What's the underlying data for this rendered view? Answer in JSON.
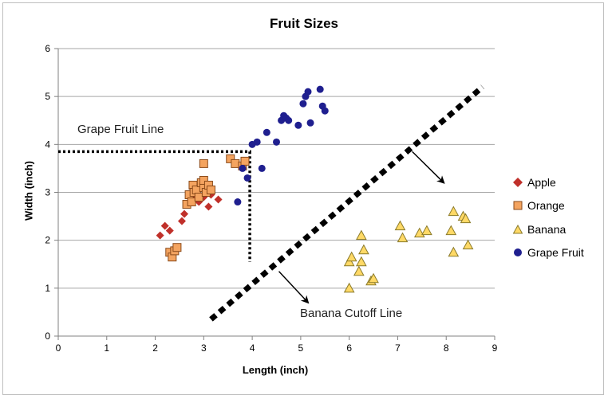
{
  "chart_data": {
    "type": "scatter",
    "title": "Fruit Sizes",
    "xlabel": "Length (inch)",
    "ylabel": "Width  (inch)",
    "xlim": [
      0,
      9
    ],
    "ylim": [
      0,
      6
    ],
    "xticks": [
      0,
      1,
      2,
      3,
      4,
      5,
      6,
      7,
      8,
      9
    ],
    "yticks": [
      0,
      1,
      2,
      3,
      4,
      5,
      6
    ],
    "grid": "horizontal",
    "legend_position": "right",
    "series": [
      {
        "name": "Apple",
        "marker": "diamond",
        "color": "#c0302a",
        "points": [
          [
            2.1,
            2.1
          ],
          [
            2.2,
            2.3
          ],
          [
            2.3,
            2.2
          ],
          [
            2.55,
            2.4
          ],
          [
            2.6,
            2.55
          ],
          [
            2.8,
            2.85
          ],
          [
            2.9,
            2.8
          ],
          [
            3.0,
            2.9
          ],
          [
            3.05,
            3.0
          ],
          [
            3.1,
            2.7
          ],
          [
            3.15,
            2.95
          ],
          [
            3.3,
            2.85
          ]
        ]
      },
      {
        "name": "Orange",
        "marker": "square",
        "color": "#f4a460",
        "points": [
          [
            2.3,
            1.75
          ],
          [
            2.35,
            1.65
          ],
          [
            2.4,
            1.78
          ],
          [
            2.45,
            1.85
          ],
          [
            2.65,
            2.75
          ],
          [
            2.7,
            2.95
          ],
          [
            2.75,
            2.8
          ],
          [
            2.78,
            3.15
          ],
          [
            2.8,
            3.0
          ],
          [
            2.85,
            3.05
          ],
          [
            2.9,
            2.9
          ],
          [
            2.95,
            3.2
          ],
          [
            3.0,
            3.1
          ],
          [
            3.0,
            3.25
          ],
          [
            3.05,
            3.0
          ],
          [
            3.1,
            3.15
          ],
          [
            3.15,
            3.05
          ],
          [
            3.0,
            3.6
          ],
          [
            3.55,
            3.7
          ],
          [
            3.65,
            3.6
          ],
          [
            3.8,
            3.55
          ],
          [
            3.85,
            3.65
          ]
        ]
      },
      {
        "name": "Banana",
        "marker": "triangle",
        "color": "#ffd966",
        "points": [
          [
            6.0,
            1.0
          ],
          [
            6.0,
            1.55
          ],
          [
            6.05,
            1.65
          ],
          [
            6.2,
            1.35
          ],
          [
            6.25,
            1.55
          ],
          [
            6.25,
            2.1
          ],
          [
            6.3,
            1.8
          ],
          [
            6.45,
            1.15
          ],
          [
            6.5,
            1.2
          ],
          [
            7.05,
            2.3
          ],
          [
            7.1,
            2.05
          ],
          [
            7.45,
            2.15
          ],
          [
            7.6,
            2.2
          ],
          [
            8.1,
            2.2
          ],
          [
            8.15,
            2.6
          ],
          [
            8.15,
            1.75
          ],
          [
            8.35,
            2.5
          ],
          [
            8.4,
            2.45
          ],
          [
            8.45,
            1.9
          ]
        ]
      },
      {
        "name": "Grape Fruit",
        "marker": "circle",
        "color": "#1f1f8f",
        "points": [
          [
            3.7,
            2.8
          ],
          [
            3.8,
            3.5
          ],
          [
            3.9,
            3.3
          ],
          [
            4.0,
            4.0
          ],
          [
            4.1,
            4.05
          ],
          [
            4.2,
            3.5
          ],
          [
            4.3,
            4.25
          ],
          [
            4.5,
            4.05
          ],
          [
            4.6,
            4.5
          ],
          [
            4.65,
            4.6
          ],
          [
            4.7,
            4.55
          ],
          [
            4.75,
            4.5
          ],
          [
            4.95,
            4.4
          ],
          [
            5.05,
            4.85
          ],
          [
            5.1,
            5.0
          ],
          [
            5.15,
            5.1
          ],
          [
            5.2,
            4.45
          ],
          [
            5.4,
            5.15
          ],
          [
            5.45,
            4.8
          ],
          [
            5.5,
            4.7
          ]
        ]
      }
    ],
    "annotations": [
      {
        "text": "Grape Fruit Line"
      },
      {
        "text": "Banana Cutoff Line"
      }
    ],
    "reference_lines": [
      {
        "name": "Grape Fruit Line",
        "style": "dotted",
        "points": [
          [
            0,
            3.85
          ],
          [
            3.95,
            3.85
          ],
          [
            3.95,
            1.55
          ]
        ]
      },
      {
        "name": "Banana Cutoff Line",
        "style": "dashed-thick",
        "points": [
          [
            3.15,
            0.35
          ],
          [
            8.75,
            5.2
          ]
        ]
      }
    ],
    "arrows": [
      {
        "from": [
          7.3,
          3.85
        ],
        "to": [
          7.95,
          3.2
        ]
      },
      {
        "from": [
          4.55,
          1.35
        ],
        "to": [
          5.15,
          0.7
        ]
      }
    ]
  }
}
